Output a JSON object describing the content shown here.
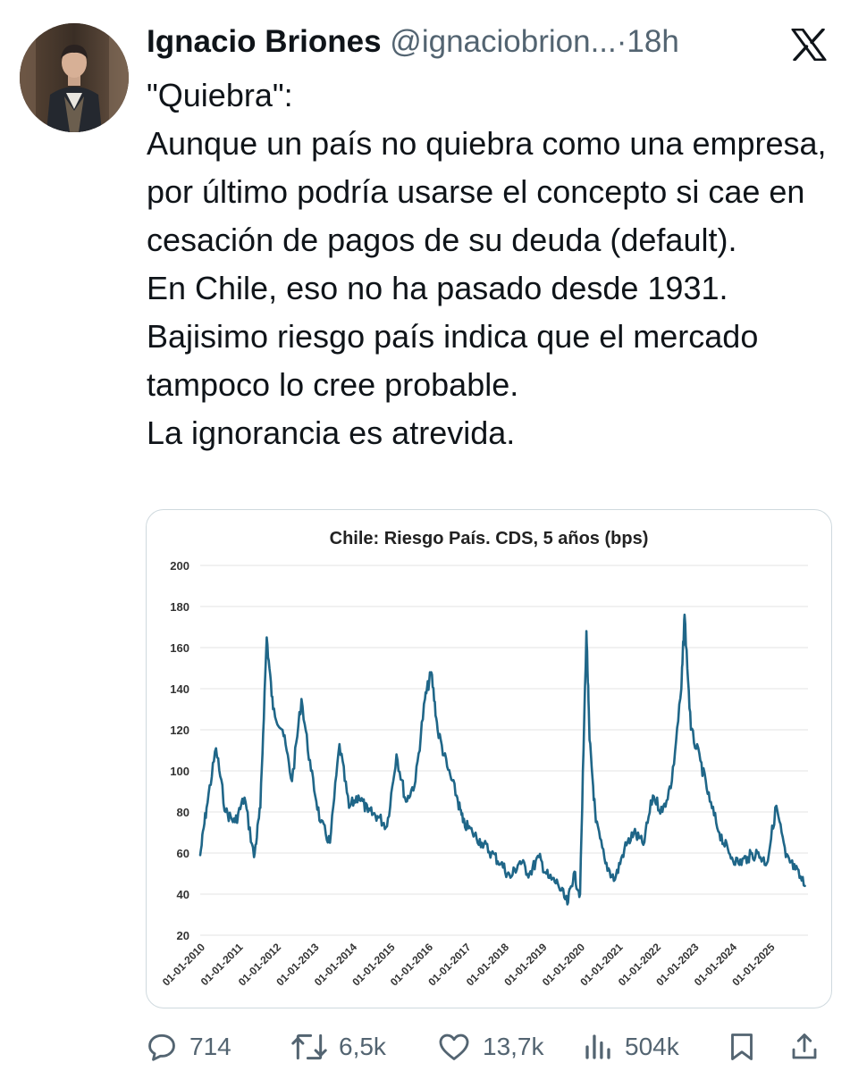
{
  "tweet": {
    "author_name": "Ignacio Briones",
    "author_handle": "@ignaciobrion...",
    "separator": "·",
    "time": "18h",
    "text": "\"Quiebra\":\nAunque un país no quiebra como una empresa, por último podría usarse el concepto si cae en cesación de pagos de su deuda (default).\nEn Chile, eso no ha pasado desde 1931.\nBajisimo riesgo país indica que el mercado tampoco lo cree probable.\nLa ignorancia es atrevida.",
    "logo_icon": "x-logo-icon"
  },
  "actions": {
    "replies": "714",
    "reposts": "6,5k",
    "likes": "13,7k",
    "views": "504k"
  },
  "chart_data": {
    "type": "line",
    "title": "Chile: Riesgo País. CDS, 5 años (bps)",
    "xlabel": "",
    "ylabel": "",
    "ylim": [
      20,
      200
    ],
    "yticks": [
      "20",
      "40",
      "60",
      "80",
      "100",
      "120",
      "140",
      "160",
      "180",
      "200"
    ],
    "xticks": [
      "01-01-2010",
      "01-01-2011",
      "01-01-2012",
      "01-01-2013",
      "01-01-2014",
      "01-01-2015",
      "01-01-2016",
      "01-01-2017",
      "01-01-2018",
      "01-01-2019",
      "01-01-2020",
      "01-01-2021",
      "01-01-2022",
      "01-01-2023",
      "01-01-2024",
      "01-01-2025"
    ],
    "grid": true,
    "color": "#1f6688",
    "series": [
      {
        "x": [
          "2010-01",
          "2010-03",
          "2010-06",
          "2010-09",
          "2010-12",
          "2011-03",
          "2011-06",
          "2011-08",
          "2011-10",
          "2011-12",
          "2012-03",
          "2012-06",
          "2012-09",
          "2012-12",
          "2013-03",
          "2013-06",
          "2013-09",
          "2013-12",
          "2014-03",
          "2014-06",
          "2014-09",
          "2014-12",
          "2015-03",
          "2015-06",
          "2015-09",
          "2015-12",
          "2016-02",
          "2016-04",
          "2016-07",
          "2016-10",
          "2016-12",
          "2017-03",
          "2017-06",
          "2017-09",
          "2017-12",
          "2018-03",
          "2018-06",
          "2018-09",
          "2018-12",
          "2019-03",
          "2019-06",
          "2019-09",
          "2019-11",
          "2020-01",
          "2020-03",
          "2020-04",
          "2020-06",
          "2020-09",
          "2020-12",
          "2021-03",
          "2021-06",
          "2021-09",
          "2021-12",
          "2022-03",
          "2022-06",
          "2022-09",
          "2022-10",
          "2022-12",
          "2023-03",
          "2023-06",
          "2023-09",
          "2023-12",
          "2024-03",
          "2024-06",
          "2024-09",
          "2024-12",
          "2025-03",
          "2025-06",
          "2025-09",
          "2025-12"
        ],
        "values": [
          59,
          82,
          111,
          80,
          75,
          87,
          58,
          82,
          165,
          130,
          120,
          95,
          135,
          100,
          75,
          65,
          113,
          82,
          88,
          80,
          78,
          73,
          108,
          85,
          95,
          135,
          148,
          120,
          102,
          88,
          75,
          70,
          65,
          60,
          55,
          48,
          56,
          50,
          58,
          48,
          45,
          35,
          50,
          40,
          168,
          115,
          75,
          55,
          47,
          62,
          70,
          64,
          88,
          80,
          95,
          140,
          176,
          120,
          105,
          85,
          70,
          60,
          55,
          58,
          60,
          55,
          83,
          58,
          52,
          44
        ]
      }
    ]
  }
}
